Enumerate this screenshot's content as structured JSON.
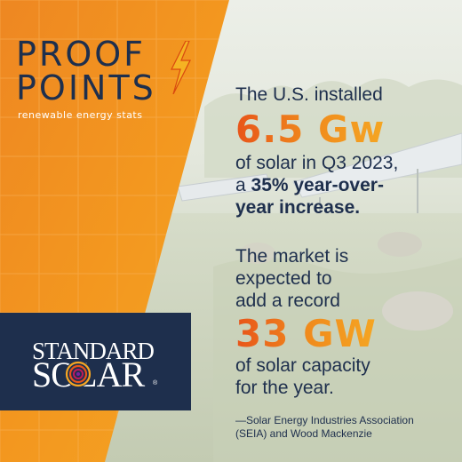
{
  "brand": {
    "title_line1": "PROOF",
    "title_line2": "POINTS",
    "subtitle": "renewable energy stats"
  },
  "stat1": {
    "line1": "The U.S. installed",
    "figure": "6.5 Gw",
    "line2": "of solar in Q3 2023,",
    "line3_prefix": "a ",
    "line3_bold": "35% year-over-",
    "line4_bold": "year increase."
  },
  "stat2": {
    "line1": "The market is",
    "line2": "expected to",
    "line3": "add a record",
    "figure": "33 GW",
    "line4": "of solar capacity",
    "line5": "for the year."
  },
  "attribution": {
    "line1": "—Solar Energy Industries Association",
    "line2": "(SEIA) and Wood Mackenzie"
  },
  "logo": {
    "top": "STANDARD",
    "bottom": "SOLAR",
    "reg": "®"
  },
  "colors": {
    "navy": "#1e2f4d",
    "orange": "#f08a1c",
    "orange_dark": "#e8541a",
    "bolt_yellow": "#f5b323"
  },
  "icons": [
    "lightning-bolt-icon",
    "sun-swirl-icon"
  ]
}
